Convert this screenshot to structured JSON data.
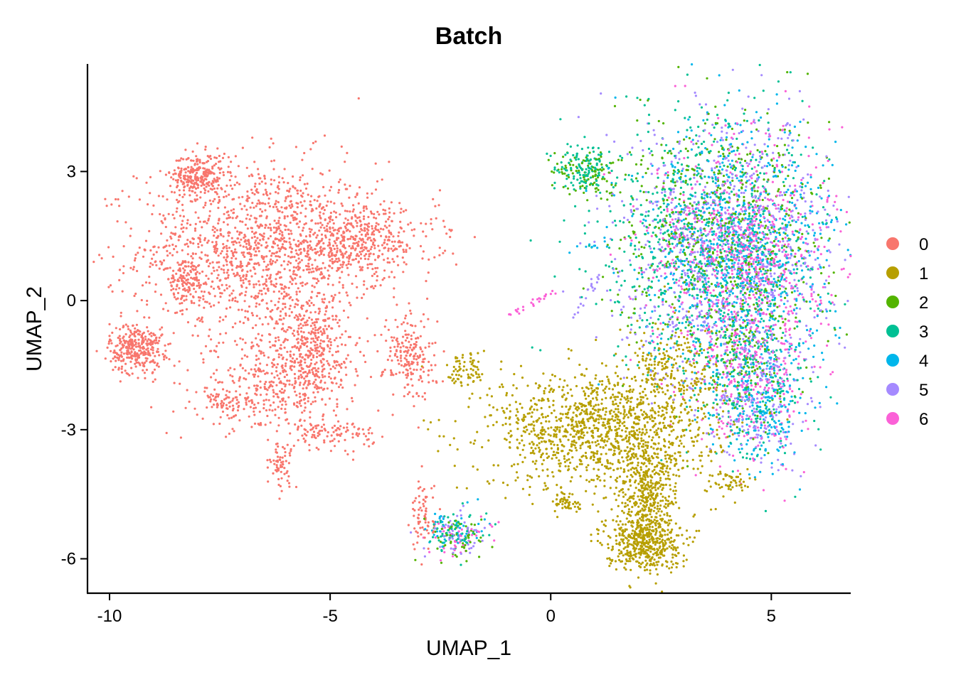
{
  "chart_data": {
    "type": "scatter",
    "title": "Batch",
    "xlabel": "UMAP_1",
    "ylabel": "UMAP_2",
    "xlim": [
      -10.5,
      6.8
    ],
    "ylim": [
      -6.8,
      5.5
    ],
    "x_ticks": [
      -10,
      -5,
      0,
      5
    ],
    "y_ticks": [
      -6,
      -3,
      0,
      3
    ],
    "x_tick_labels": [
      "-10",
      "-5",
      "0",
      "5"
    ],
    "y_tick_labels": [
      "-6",
      "-3",
      "0",
      "3"
    ],
    "grid": false,
    "legend_position": "right",
    "series": [
      {
        "name": "0",
        "color": "#F8766D"
      },
      {
        "name": "1",
        "color": "#B79F00"
      },
      {
        "name": "2",
        "color": "#53B400"
      },
      {
        "name": "3",
        "color": "#00C094"
      },
      {
        "name": "4",
        "color": "#00B6EB"
      },
      {
        "name": "5",
        "color": "#A58AFF"
      },
      {
        "name": "6",
        "color": "#FB61D7"
      }
    ],
    "clusters": [
      {
        "series": "0",
        "cx": -6.6,
        "cy": 1.2,
        "sx": 1.6,
        "sy": 1.2,
        "n": 1400
      },
      {
        "series": "0",
        "cx": -8.0,
        "cy": 2.9,
        "sx": 0.35,
        "sy": 0.3,
        "n": 260
      },
      {
        "series": "0",
        "cx": -9.4,
        "cy": -1.1,
        "sx": 0.35,
        "sy": 0.35,
        "n": 320
      },
      {
        "series": "0",
        "cx": -5.4,
        "cy": -1.2,
        "sx": 0.6,
        "sy": 0.8,
        "n": 420
      },
      {
        "series": "0",
        "cx": -4.3,
        "cy": 1.4,
        "sx": 1.0,
        "sy": 0.5,
        "n": 420
      },
      {
        "series": "0",
        "cx": -8.3,
        "cy": 0.4,
        "sx": 0.25,
        "sy": 0.3,
        "n": 120
      },
      {
        "series": "0",
        "cx": -6.5,
        "cy": -2.0,
        "sx": 0.9,
        "sy": 0.6,
        "n": 300
      },
      {
        "series": "0",
        "cx": -5.0,
        "cy": -3.1,
        "sx": 0.6,
        "sy": 0.2,
        "n": 110
      },
      {
        "series": "0",
        "cx": -6.1,
        "cy": -3.8,
        "sx": 0.15,
        "sy": 0.3,
        "n": 60
      },
      {
        "series": "0",
        "cx": -3.2,
        "cy": -1.3,
        "sx": 0.35,
        "sy": 0.6,
        "n": 200
      },
      {
        "series": "0",
        "cx": -7.4,
        "cy": -2.4,
        "sx": 0.2,
        "sy": 0.2,
        "n": 50
      },
      {
        "series": "0",
        "cx": -2.9,
        "cy": -5.0,
        "sx": 0.15,
        "sy": 0.5,
        "n": 70
      },
      {
        "series": "1",
        "cx": 1.2,
        "cy": -3.0,
        "sx": 1.5,
        "sy": 0.8,
        "n": 1300
      },
      {
        "series": "1",
        "cx": 2.1,
        "cy": -5.6,
        "sx": 0.5,
        "sy": 0.4,
        "n": 500
      },
      {
        "series": "1",
        "cx": 2.2,
        "cy": -4.5,
        "sx": 0.4,
        "sy": 0.6,
        "n": 350
      },
      {
        "series": "1",
        "cx": -1.9,
        "cy": -1.6,
        "sx": 0.25,
        "sy": 0.3,
        "n": 70
      },
      {
        "series": "1",
        "cx": 0.4,
        "cy": -4.7,
        "sx": 0.2,
        "sy": 0.15,
        "n": 50
      },
      {
        "series": "1",
        "cx": 4.1,
        "cy": -4.2,
        "sx": 0.3,
        "sy": 0.15,
        "n": 50
      },
      {
        "series": "1",
        "cx": 2.8,
        "cy": -1.6,
        "sx": 0.6,
        "sy": 0.6,
        "n": 200
      },
      {
        "series": "2",
        "cx": 3.9,
        "cy": 1.5,
        "sx": 1.4,
        "sy": 1.6,
        "n": 650
      },
      {
        "series": "3",
        "cx": 3.7,
        "cy": 1.3,
        "sx": 1.5,
        "sy": 1.8,
        "n": 800
      },
      {
        "series": "4",
        "cx": 4.3,
        "cy": 1.0,
        "sx": 1.3,
        "sy": 1.8,
        "n": 800
      },
      {
        "series": "5",
        "cx": 4.0,
        "cy": 1.2,
        "sx": 1.4,
        "sy": 1.8,
        "n": 900
      },
      {
        "series": "6",
        "cx": 4.4,
        "cy": 1.0,
        "sx": 1.2,
        "sy": 1.6,
        "n": 800
      },
      {
        "series": "3",
        "cx": 4.6,
        "cy": -2.0,
        "sx": 0.7,
        "sy": 1.0,
        "n": 200
      },
      {
        "series": "4",
        "cx": 4.8,
        "cy": -2.5,
        "sx": 0.6,
        "sy": 0.9,
        "n": 200
      },
      {
        "series": "5",
        "cx": 4.6,
        "cy": -2.2,
        "sx": 0.7,
        "sy": 1.0,
        "n": 200
      },
      {
        "series": "6",
        "cx": 4.6,
        "cy": -2.0,
        "sx": 0.7,
        "sy": 1.0,
        "n": 200
      },
      {
        "series": "2",
        "cx": 4.4,
        "cy": -1.5,
        "sx": 0.6,
        "sy": 1.0,
        "n": 150
      },
      {
        "series": "2",
        "cx": -2.2,
        "cy": -5.5,
        "sx": 0.4,
        "sy": 0.3,
        "n": 60
      },
      {
        "series": "3",
        "cx": -2.2,
        "cy": -5.4,
        "sx": 0.4,
        "sy": 0.3,
        "n": 60
      },
      {
        "series": "4",
        "cx": -2.2,
        "cy": -5.3,
        "sx": 0.4,
        "sy": 0.3,
        "n": 40
      },
      {
        "series": "5",
        "cx": -2.2,
        "cy": -5.4,
        "sx": 0.4,
        "sy": 0.3,
        "n": 60
      },
      {
        "series": "6",
        "cx": -2.1,
        "cy": -5.5,
        "sx": 0.4,
        "sy": 0.3,
        "n": 40
      },
      {
        "series": "3",
        "cx": 0.8,
        "cy": 3.1,
        "sx": 0.4,
        "sy": 0.3,
        "n": 120
      },
      {
        "series": "2",
        "cx": 0.8,
        "cy": 3.0,
        "sx": 0.4,
        "sy": 0.3,
        "n": 90
      }
    ],
    "strips": [
      {
        "series": "6",
        "from": [
          -1.0,
          -0.35
        ],
        "to": [
          0.1,
          0.2
        ],
        "n": 25
      },
      {
        "series": "5",
        "from": [
          0.5,
          -0.4
        ],
        "to": [
          1.2,
          0.7
        ],
        "n": 20
      },
      {
        "series": "4",
        "from": [
          0.3,
          1.1
        ],
        "to": [
          1.3,
          1.4
        ],
        "n": 10
      }
    ]
  },
  "legend": {
    "items": [
      {
        "label": "0",
        "color": "#F8766D"
      },
      {
        "label": "1",
        "color": "#B79F00"
      },
      {
        "label": "2",
        "color": "#53B400"
      },
      {
        "label": "3",
        "color": "#00C094"
      },
      {
        "label": "4",
        "color": "#00B6EB"
      },
      {
        "label": "5",
        "color": "#A58AFF"
      },
      {
        "label": "6",
        "color": "#FB61D7"
      }
    ]
  }
}
